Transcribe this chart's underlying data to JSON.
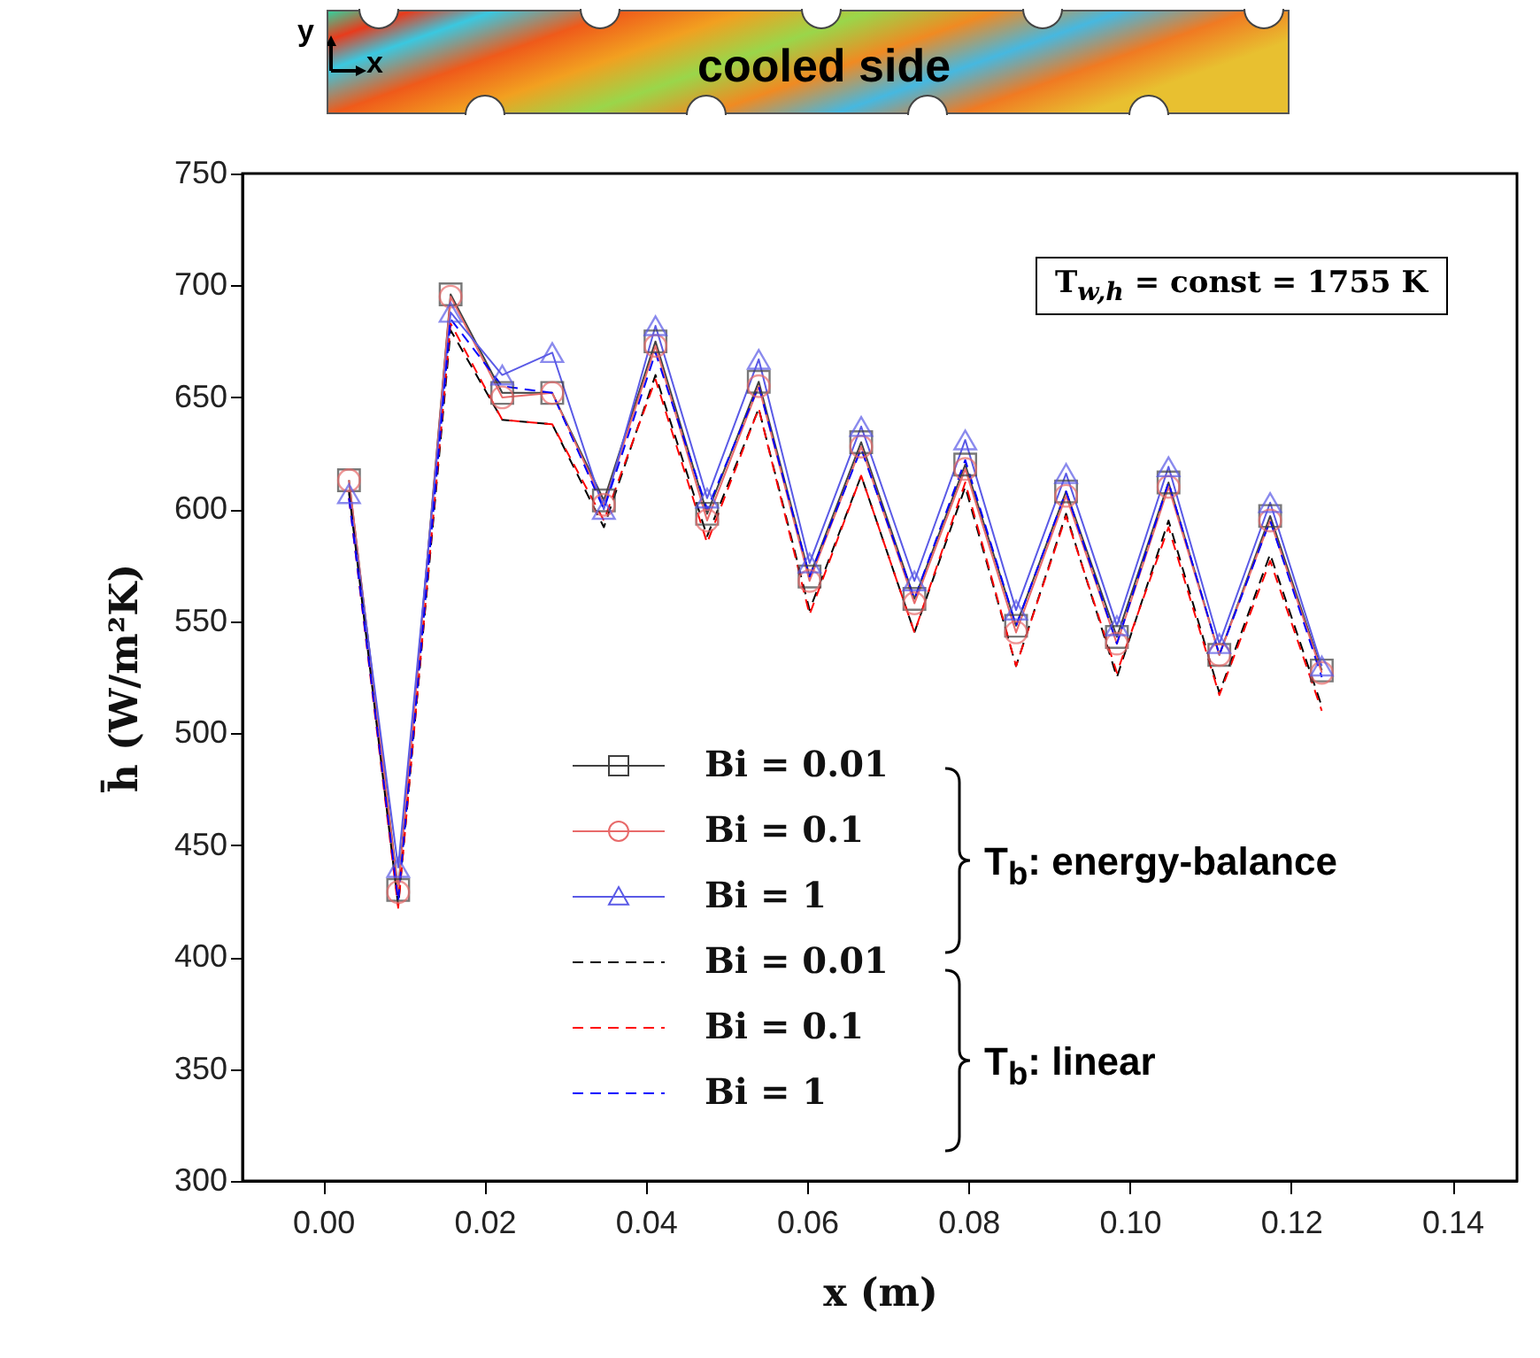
{
  "chart_data": {
    "type": "line",
    "xlabel": "x (m)",
    "ylabel": "h̄ (W/m²K)",
    "x": [
      0.0032,
      0.0093,
      0.0158,
      0.0222,
      0.0284,
      0.0348,
      0.0412,
      0.0476,
      0.054,
      0.0603,
      0.0667,
      0.0733,
      0.0796,
      0.0859,
      0.0921,
      0.0984,
      0.1048,
      0.1111,
      0.1174,
      0.1238
    ],
    "series": [
      {
        "name": "Bi = 0.01",
        "color": "#404040",
        "line_style": "solid",
        "marker": "square",
        "values": [
          613,
          430,
          696,
          652,
          652,
          604,
          675,
          598,
          657,
          570,
          630,
          560,
          620,
          548,
          608,
          543,
          612,
          535,
          597,
          528
        ]
      },
      {
        "name": "Bi = 0.1",
        "color": "#e86a6a",
        "line_style": "solid",
        "marker": "circle",
        "values": [
          613,
          429,
          695,
          650,
          652,
          602,
          673,
          595,
          655,
          568,
          628,
          558,
          618,
          545,
          606,
          540,
          610,
          535,
          595,
          527
        ]
      },
      {
        "name": "Bi = 1",
        "color": "#5a5ae6",
        "line_style": "solid",
        "marker": "triangle",
        "values": [
          607,
          440,
          688,
          660,
          670,
          600,
          682,
          605,
          667,
          576,
          637,
          568,
          631,
          555,
          616,
          548,
          619,
          540,
          603,
          530
        ]
      },
      {
        "name": "Bi = 0.01",
        "color": "#000000",
        "line_style": "dashed",
        "marker": "none",
        "values": [
          608,
          423,
          680,
          640,
          638,
          592,
          660,
          588,
          645,
          555,
          615,
          545,
          610,
          530,
          598,
          525,
          595,
          518,
          580,
          512
        ]
      },
      {
        "name": "Bi = 0.1",
        "color": "#ff0000",
        "line_style": "dashed",
        "marker": "none",
        "values": [
          605,
          422,
          683,
          640,
          638,
          595,
          658,
          585,
          645,
          553,
          615,
          545,
          612,
          530,
          597,
          527,
          592,
          517,
          577,
          510
        ]
      },
      {
        "name": "Bi = 1",
        "color": "#0000ff",
        "line_style": "dashed",
        "marker": "none",
        "values": [
          605,
          425,
          685,
          655,
          652,
          600,
          670,
          600,
          655,
          570,
          627,
          560,
          622,
          548,
          608,
          540,
          612,
          535,
          595,
          525
        ]
      }
    ],
    "xlim": [
      -0.01,
      0.148
    ],
    "xticks": [
      {
        "value": 0,
        "label": "0.00"
      },
      0.02,
      0.04,
      0.06,
      0.08,
      {
        "value": 0.1,
        "label": "0.10"
      },
      0.12,
      0.14
    ],
    "ylim": [
      300,
      750
    ],
    "yticks": [
      300,
      350,
      400,
      450,
      500,
      550,
      600,
      650,
      700,
      750
    ],
    "grid": false,
    "legend": "bottom",
    "annotations": [
      "T$_{b}$: energy-balance",
      "T$_{b}$: linear",
      "T$_{w,h}$ = const = 1755 K",
      "cooled side",
      "y",
      "x"
    ]
  }
}
